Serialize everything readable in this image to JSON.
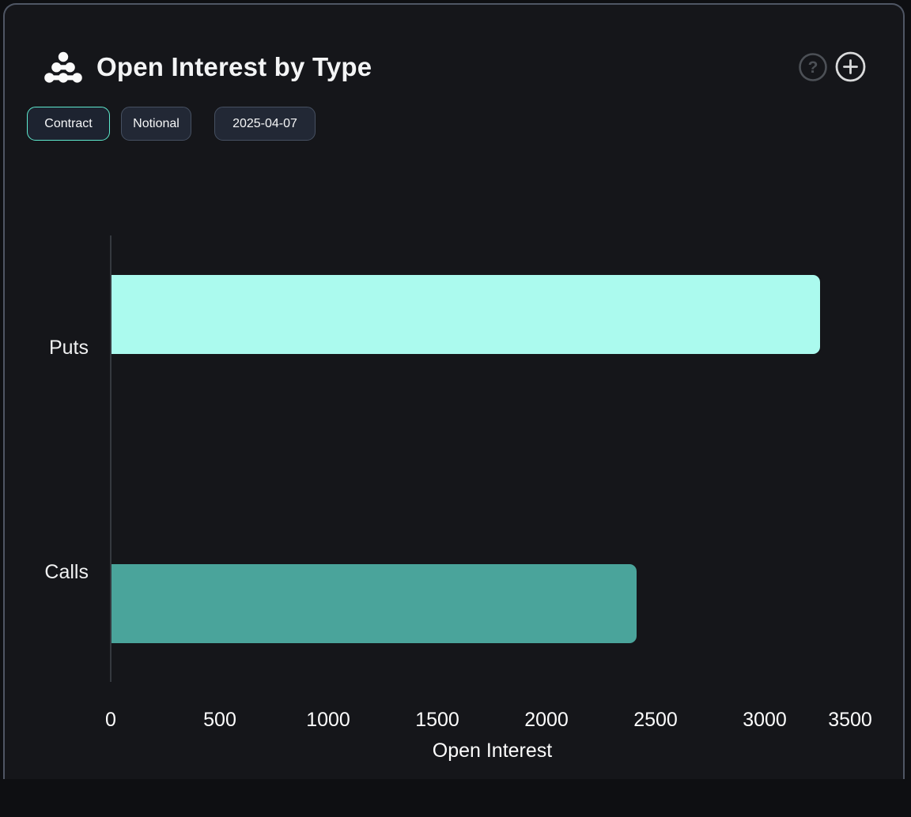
{
  "header": {
    "title": "Open Interest by Type",
    "logo_icon": "dot-cluster-icon",
    "help_icon": "question-mark-icon",
    "add_icon": "plus-icon"
  },
  "toolbar": {
    "buttons": [
      {
        "label": "Contract",
        "active": true
      },
      {
        "label": "Notional",
        "active": false
      },
      {
        "label": "2025-04-07",
        "active": false
      }
    ]
  },
  "chart_data": {
    "type": "bar",
    "orientation": "horizontal",
    "title": "Open Interest by Type",
    "categories": [
      "Puts",
      "Calls"
    ],
    "values": [
      3250,
      2410
    ],
    "bar_colors": [
      "#abfaee",
      "#4aa49b"
    ],
    "xlabel": "Open Interest",
    "xlim": [
      0,
      3500
    ],
    "xticks": [
      0,
      500,
      1000,
      1500,
      2000,
      2500,
      3000,
      3500
    ],
    "grid": false,
    "legend": "none"
  },
  "colors": {
    "page_bg": "#0e0f12",
    "card_bg": "#15161a",
    "card_border": "#4f5664",
    "accent_mint": "#5ee9cd",
    "bar_puts": "#abfaee",
    "bar_calls": "#4aa49b",
    "axis_line": "#35393f",
    "text": "#f3f4f5"
  }
}
